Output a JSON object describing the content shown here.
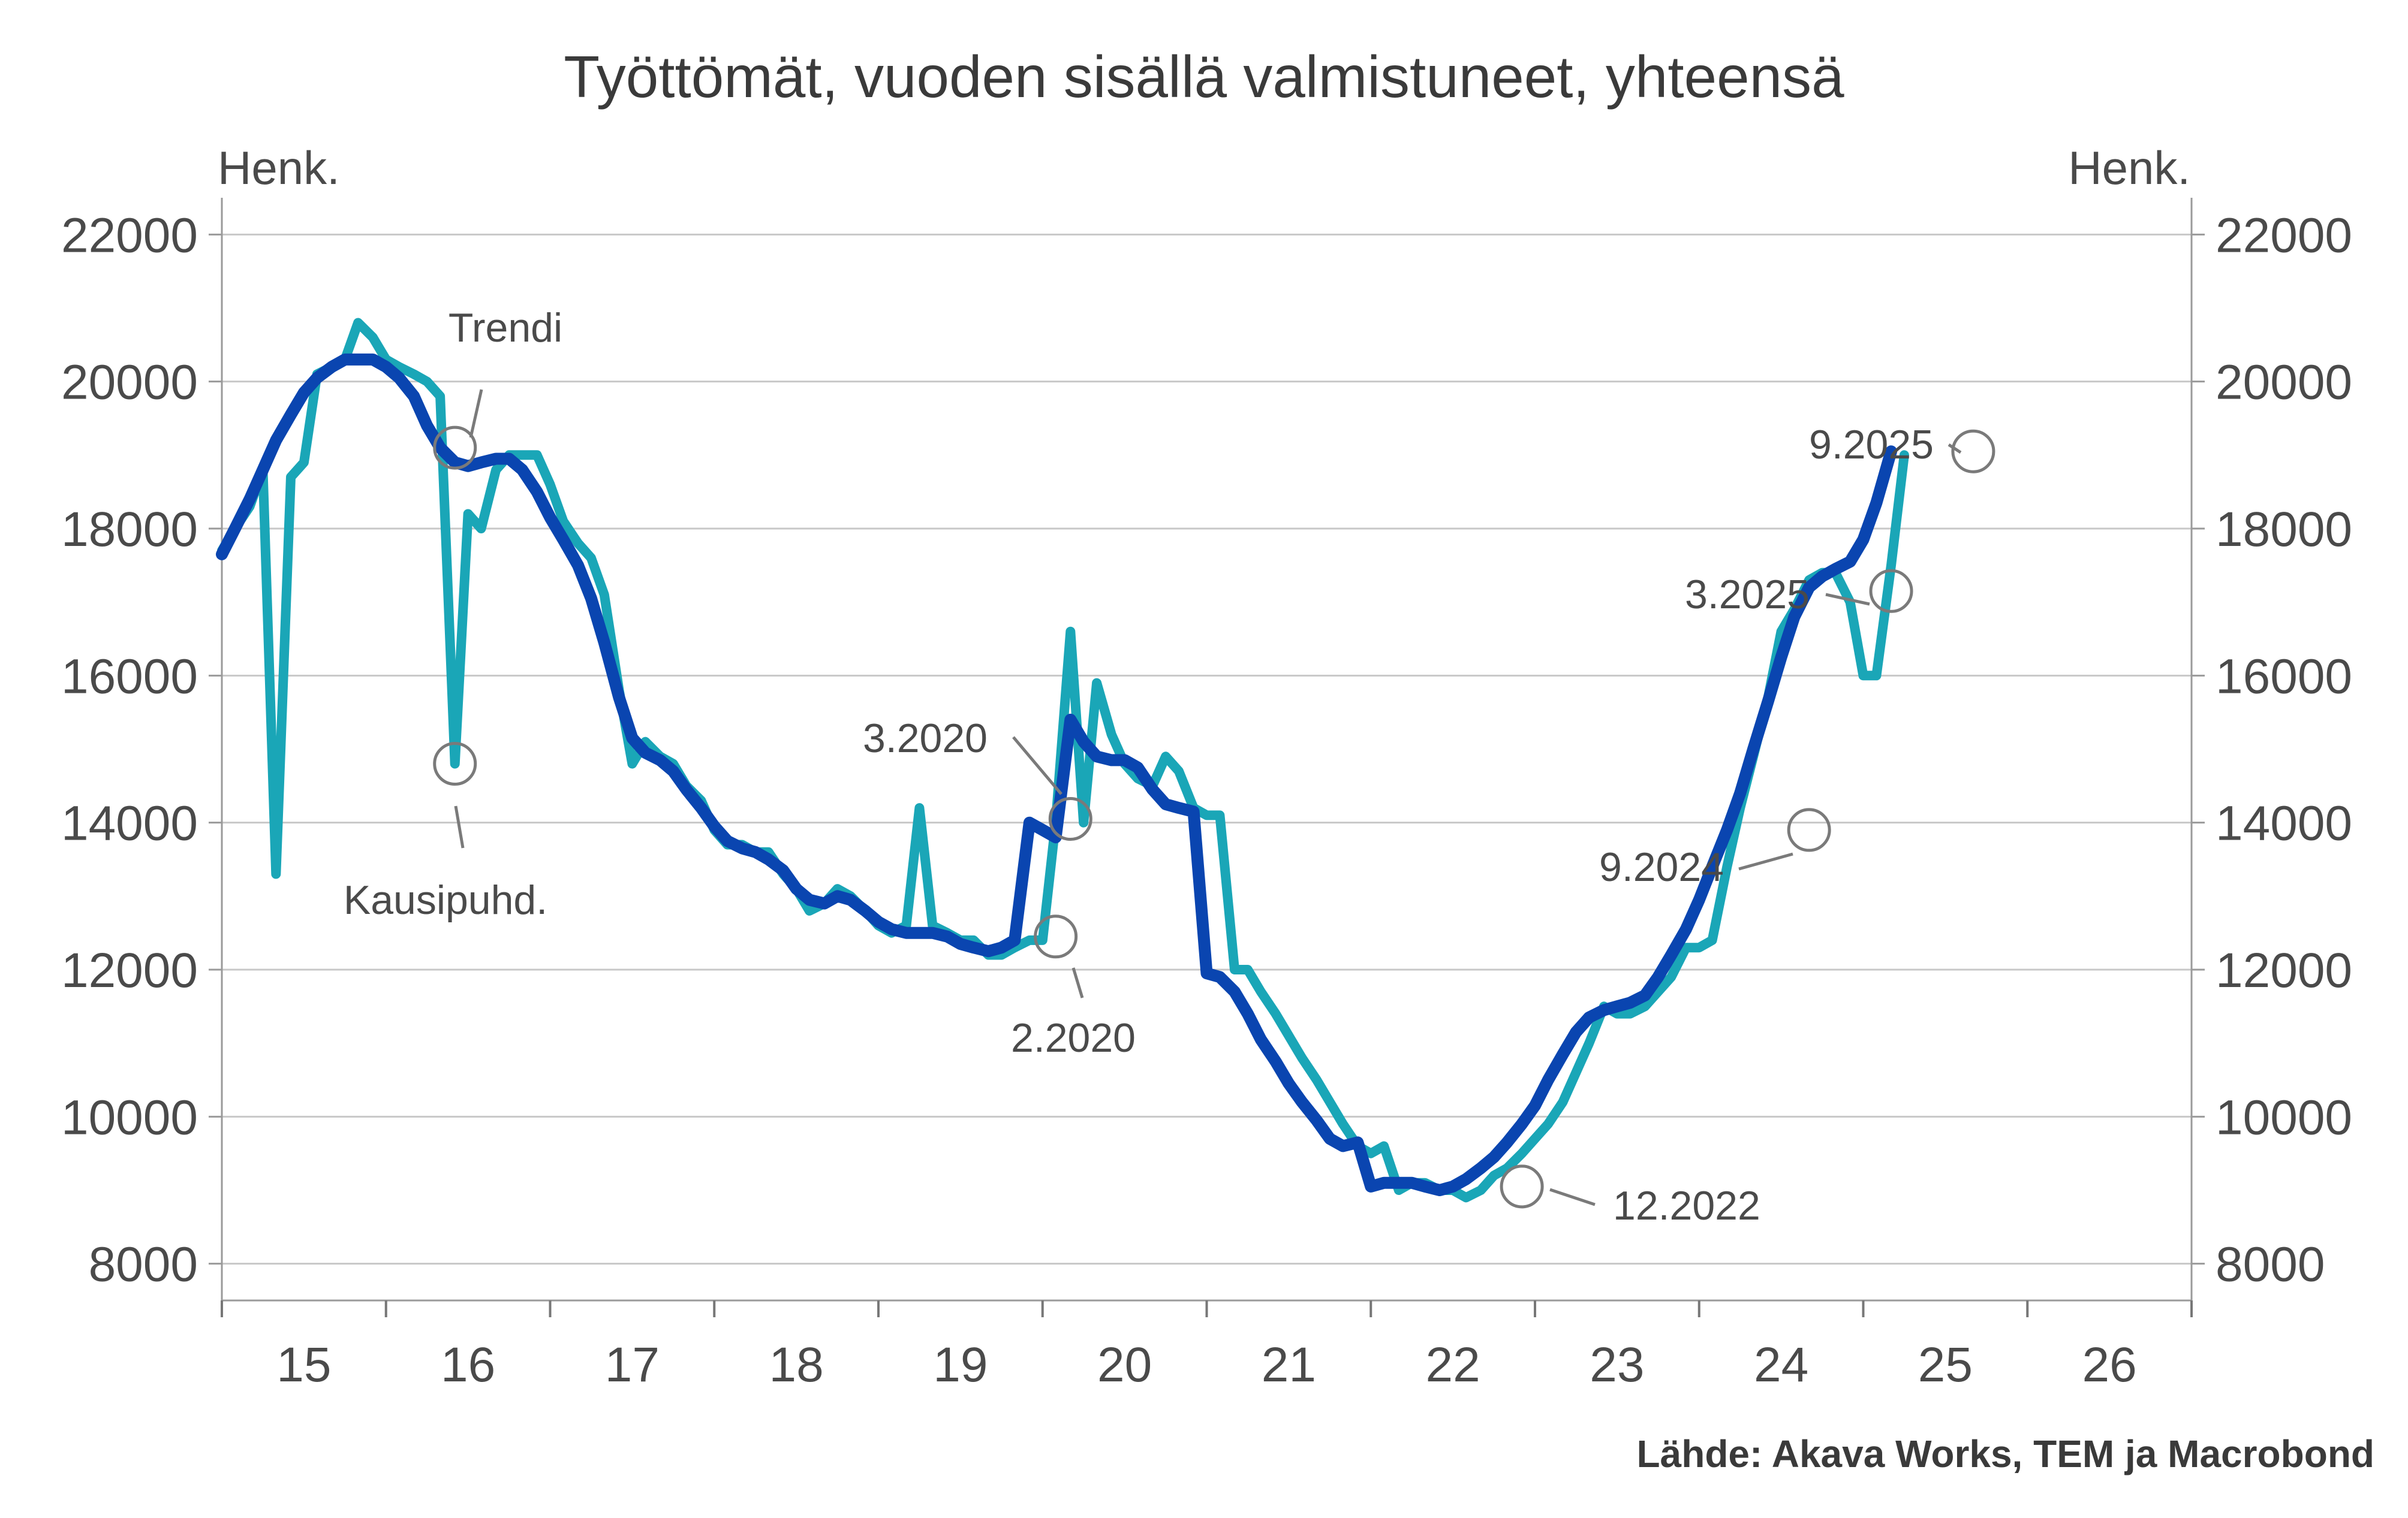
{
  "chart_data": {
    "type": "line",
    "title": "Työttömät, vuoden sisällä valmistuneet, yhteensä",
    "ylabel_left": "Henk.",
    "ylabel_right": "Henk.",
    "ylim": [
      7500,
      22500
    ],
    "yticks": [
      8000,
      10000,
      12000,
      14000,
      16000,
      18000,
      20000,
      22000
    ],
    "xlim": [
      2015.0,
      2027.0
    ],
    "xtick_labels": [
      {
        "label": "15",
        "x": 2015.5
      },
      {
        "label": "16",
        "x": 2016.5
      },
      {
        "label": "17",
        "x": 2017.5
      },
      {
        "label": "18",
        "x": 2018.5
      },
      {
        "label": "19",
        "x": 2019.5
      },
      {
        "label": "20",
        "x": 2020.5
      },
      {
        "label": "21",
        "x": 2021.5
      },
      {
        "label": "22",
        "x": 2022.5
      },
      {
        "label": "23",
        "x": 2023.5
      },
      {
        "label": "24",
        "x": 2024.5
      },
      {
        "label": "25",
        "x": 2025.5
      },
      {
        "label": "26",
        "x": 2026.5
      }
    ],
    "year_boundaries": [
      2015,
      2016,
      2017,
      2018,
      2019,
      2020,
      2021,
      2022,
      2023,
      2024,
      2025,
      2026,
      2027
    ],
    "series": [
      {
        "name": "Kausipuhd.",
        "color": "#1aa6b7",
        "points": [
          [
            2015.0,
            17700
          ],
          [
            2015.08,
            18000
          ],
          [
            2015.17,
            18300
          ],
          [
            2015.25,
            18800
          ],
          [
            2015.33,
            13300
          ],
          [
            2015.42,
            18700
          ],
          [
            2015.5,
            18900
          ],
          [
            2015.58,
            20100
          ],
          [
            2015.67,
            20200
          ],
          [
            2015.75,
            20300
          ],
          [
            2015.83,
            20800
          ],
          [
            2015.92,
            20600
          ],
          [
            2016.0,
            20300
          ],
          [
            2016.08,
            20200
          ],
          [
            2016.17,
            20100
          ],
          [
            2016.25,
            20000
          ],
          [
            2016.33,
            19800
          ],
          [
            2016.42,
            14800
          ],
          [
            2016.5,
            18200
          ],
          [
            2016.58,
            18000
          ],
          [
            2016.67,
            18800
          ],
          [
            2016.75,
            19000
          ],
          [
            2016.83,
            19000
          ],
          [
            2016.92,
            19000
          ],
          [
            2017.0,
            18600
          ],
          [
            2017.08,
            18100
          ],
          [
            2017.17,
            17800
          ],
          [
            2017.25,
            17600
          ],
          [
            2017.33,
            17100
          ],
          [
            2017.42,
            15800
          ],
          [
            2017.5,
            14800
          ],
          [
            2017.58,
            15100
          ],
          [
            2017.67,
            14900
          ],
          [
            2017.75,
            14800
          ],
          [
            2017.83,
            14500
          ],
          [
            2017.92,
            14300
          ],
          [
            2018.0,
            13900
          ],
          [
            2018.08,
            13700
          ],
          [
            2018.17,
            13700
          ],
          [
            2018.25,
            13600
          ],
          [
            2018.33,
            13600
          ],
          [
            2018.42,
            13300
          ],
          [
            2018.5,
            13100
          ],
          [
            2018.58,
            12800
          ],
          [
            2018.67,
            12900
          ],
          [
            2018.75,
            13100
          ],
          [
            2018.83,
            13000
          ],
          [
            2018.92,
            12800
          ],
          [
            2019.0,
            12600
          ],
          [
            2019.08,
            12500
          ],
          [
            2019.17,
            12600
          ],
          [
            2019.25,
            14200
          ],
          [
            2019.33,
            12600
          ],
          [
            2019.42,
            12500
          ],
          [
            2019.5,
            12400
          ],
          [
            2019.58,
            12400
          ],
          [
            2019.67,
            12200
          ],
          [
            2019.75,
            12200
          ],
          [
            2019.83,
            12300
          ],
          [
            2019.92,
            12400
          ],
          [
            2020.0,
            12400
          ],
          [
            2020.08,
            14000
          ],
          [
            2020.17,
            16600
          ],
          [
            2020.25,
            14000
          ],
          [
            2020.33,
            15900
          ],
          [
            2020.42,
            15200
          ],
          [
            2020.5,
            14800
          ],
          [
            2020.58,
            14600
          ],
          [
            2020.67,
            14500
          ],
          [
            2020.75,
            14900
          ],
          [
            2020.83,
            14700
          ],
          [
            2020.92,
            14200
          ],
          [
            2021.0,
            14100
          ],
          [
            2021.08,
            14100
          ],
          [
            2021.17,
            12000
          ],
          [
            2021.25,
            12000
          ],
          [
            2021.33,
            11700
          ],
          [
            2021.42,
            11400
          ],
          [
            2021.5,
            11100
          ],
          [
            2021.58,
            10800
          ],
          [
            2021.67,
            10500
          ],
          [
            2021.75,
            10200
          ],
          [
            2021.83,
            9900
          ],
          [
            2021.92,
            9600
          ],
          [
            2022.0,
            9500
          ],
          [
            2022.08,
            9600
          ],
          [
            2022.17,
            9000
          ],
          [
            2022.25,
            9100
          ],
          [
            2022.33,
            9100
          ],
          [
            2022.42,
            9000
          ],
          [
            2022.5,
            9000
          ],
          [
            2022.58,
            8900
          ],
          [
            2022.67,
            9000
          ],
          [
            2022.75,
            9200
          ],
          [
            2022.83,
            9300
          ],
          [
            2022.92,
            9500
          ],
          [
            2023.0,
            9700
          ],
          [
            2023.08,
            9900
          ],
          [
            2023.17,
            10200
          ],
          [
            2023.25,
            10600
          ],
          [
            2023.33,
            11000
          ],
          [
            2023.42,
            11500
          ],
          [
            2023.5,
            11400
          ],
          [
            2023.58,
            11400
          ],
          [
            2023.67,
            11500
          ],
          [
            2023.75,
            11700
          ],
          [
            2023.83,
            11900
          ],
          [
            2023.92,
            12300
          ],
          [
            2024.0,
            12300
          ],
          [
            2024.08,
            12400
          ],
          [
            2024.17,
            13400
          ],
          [
            2024.25,
            14200
          ],
          [
            2024.33,
            14900
          ],
          [
            2024.42,
            15700
          ],
          [
            2024.5,
            16600
          ],
          [
            2024.58,
            16900
          ],
          [
            2024.67,
            17300
          ],
          [
            2024.75,
            17400
          ],
          [
            2024.83,
            17400
          ],
          [
            2024.92,
            17000
          ],
          [
            2025.0,
            16000
          ],
          [
            2025.08,
            16000
          ],
          [
            2025.17,
            17500
          ],
          [
            2025.25,
            19000
          ]
        ]
      },
      {
        "name": "Trendi",
        "color": "#0a45b0",
        "points": [
          [
            2015.0,
            17650
          ],
          [
            2015.08,
            18000
          ],
          [
            2015.17,
            18400
          ],
          [
            2015.25,
            18800
          ],
          [
            2015.33,
            19200
          ],
          [
            2015.42,
            19550
          ],
          [
            2015.5,
            19850
          ],
          [
            2015.58,
            20050
          ],
          [
            2015.67,
            20200
          ],
          [
            2015.75,
            20300
          ],
          [
            2015.83,
            20300
          ],
          [
            2015.92,
            20300
          ],
          [
            2016.0,
            20200
          ],
          [
            2016.08,
            20050
          ],
          [
            2016.17,
            19800
          ],
          [
            2016.25,
            19400
          ],
          [
            2016.33,
            19100
          ],
          [
            2016.42,
            18900
          ],
          [
            2016.5,
            18850
          ],
          [
            2016.58,
            18900
          ],
          [
            2016.67,
            18950
          ],
          [
            2016.75,
            18950
          ],
          [
            2016.83,
            18800
          ],
          [
            2016.92,
            18500
          ],
          [
            2017.0,
            18150
          ],
          [
            2017.08,
            17850
          ],
          [
            2017.17,
            17500
          ],
          [
            2017.25,
            17050
          ],
          [
            2017.33,
            16450
          ],
          [
            2017.42,
            15700
          ],
          [
            2017.5,
            15150
          ],
          [
            2017.58,
            14950
          ],
          [
            2017.67,
            14850
          ],
          [
            2017.75,
            14700
          ],
          [
            2017.83,
            14450
          ],
          [
            2017.92,
            14200
          ],
          [
            2018.0,
            13950
          ],
          [
            2018.08,
            13750
          ],
          [
            2018.17,
            13650
          ],
          [
            2018.25,
            13600
          ],
          [
            2018.33,
            13500
          ],
          [
            2018.42,
            13350
          ],
          [
            2018.5,
            13100
          ],
          [
            2018.58,
            12950
          ],
          [
            2018.67,
            12900
          ],
          [
            2018.75,
            13000
          ],
          [
            2018.83,
            12950
          ],
          [
            2018.92,
            12800
          ],
          [
            2019.0,
            12650
          ],
          [
            2019.08,
            12550
          ],
          [
            2019.17,
            12500
          ],
          [
            2019.25,
            12500
          ],
          [
            2019.33,
            12500
          ],
          [
            2019.42,
            12450
          ],
          [
            2019.5,
            12350
          ],
          [
            2019.58,
            12300
          ],
          [
            2019.67,
            12250
          ],
          [
            2019.75,
            12300
          ],
          [
            2019.83,
            12400
          ],
          [
            2019.92,
            14000
          ],
          [
            2020.0,
            13900
          ],
          [
            2020.08,
            13800
          ],
          [
            2020.17,
            15400
          ],
          [
            2020.25,
            15100
          ],
          [
            2020.33,
            14900
          ],
          [
            2020.42,
            14850
          ],
          [
            2020.5,
            14850
          ],
          [
            2020.58,
            14750
          ],
          [
            2020.67,
            14450
          ],
          [
            2020.75,
            14250
          ],
          [
            2020.83,
            14200
          ],
          [
            2020.92,
            14150
          ],
          [
            2021.0,
            11950
          ],
          [
            2021.08,
            11900
          ],
          [
            2021.17,
            11700
          ],
          [
            2021.25,
            11400
          ],
          [
            2021.33,
            11050
          ],
          [
            2021.42,
            10750
          ],
          [
            2021.5,
            10450
          ],
          [
            2021.58,
            10200
          ],
          [
            2021.67,
            9950
          ],
          [
            2021.75,
            9700
          ],
          [
            2021.83,
            9600
          ],
          [
            2021.92,
            9650
          ],
          [
            2022.0,
            9050
          ],
          [
            2022.08,
            9100
          ],
          [
            2022.17,
            9100
          ],
          [
            2022.25,
            9100
          ],
          [
            2022.33,
            9050
          ],
          [
            2022.42,
            9000
          ],
          [
            2022.5,
            9050
          ],
          [
            2022.58,
            9150
          ],
          [
            2022.67,
            9300
          ],
          [
            2022.75,
            9450
          ],
          [
            2022.83,
            9650
          ],
          [
            2022.92,
            9900
          ],
          [
            2023.0,
            10150
          ],
          [
            2023.08,
            10500
          ],
          [
            2023.17,
            10850
          ],
          [
            2023.25,
            11150
          ],
          [
            2023.33,
            11350
          ],
          [
            2023.42,
            11450
          ],
          [
            2023.5,
            11500
          ],
          [
            2023.58,
            11550
          ],
          [
            2023.67,
            11650
          ],
          [
            2023.75,
            11900
          ],
          [
            2023.83,
            12200
          ],
          [
            2023.92,
            12550
          ],
          [
            2024.0,
            12950
          ],
          [
            2024.08,
            13400
          ],
          [
            2024.17,
            13900
          ],
          [
            2024.25,
            14400
          ],
          [
            2024.33,
            15000
          ],
          [
            2024.42,
            15650
          ],
          [
            2024.5,
            16250
          ],
          [
            2024.58,
            16800
          ],
          [
            2024.67,
            17200
          ],
          [
            2024.75,
            17350
          ],
          [
            2024.83,
            17450
          ],
          [
            2024.92,
            17550
          ],
          [
            2025.0,
            17850
          ],
          [
            2025.08,
            18350
          ],
          [
            2025.17,
            19050
          ]
        ]
      }
    ],
    "annotations": [
      {
        "label": "Trendi",
        "x": 2016.42,
        "y": 19100
      },
      {
        "label": "Kausipuhd.",
        "x": 2016.42,
        "y": 14800
      },
      {
        "label": "3.2020",
        "x": 2020.17,
        "y": 14050
      },
      {
        "label": "2.2020",
        "x": 2020.08,
        "y": 12450
      },
      {
        "label": "12.2022",
        "x": 2022.92,
        "y": 9050
      },
      {
        "label": "9.2024",
        "x": 2024.67,
        "y": 13900
      },
      {
        "label": "3.2025",
        "x": 2025.17,
        "y": 17150
      },
      {
        "label": "9.2025",
        "x": 2025.67,
        "y": 19050
      }
    ],
    "source": "Lähde: Akava Works, TEM ja Macrobond"
  }
}
